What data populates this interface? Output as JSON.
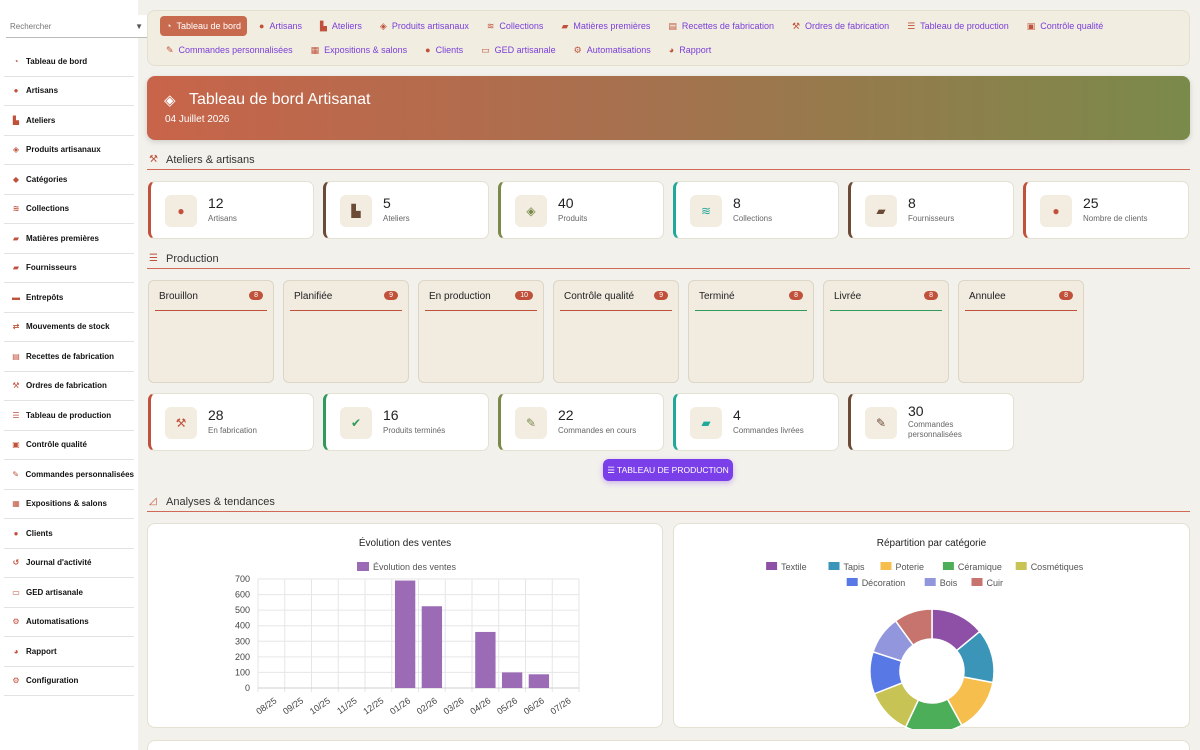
{
  "search": {
    "placeholder": "Rechercher"
  },
  "sidebar": {
    "items": [
      {
        "label": "Tableau de bord",
        "icon": "gauge-icon",
        "glyph": "◔"
      },
      {
        "label": "Artisans",
        "icon": "user-icon",
        "glyph": "●"
      },
      {
        "label": "Ateliers",
        "icon": "factory-icon",
        "glyph": "▙"
      },
      {
        "label": "Produits artisanaux",
        "icon": "gem-icon",
        "glyph": "◈"
      },
      {
        "label": "Catégories",
        "icon": "tags-icon",
        "glyph": "◆"
      },
      {
        "label": "Collections",
        "icon": "layers-icon",
        "glyph": "≋"
      },
      {
        "label": "Matières premières",
        "icon": "truck-icon",
        "glyph": "▰"
      },
      {
        "label": "Fournisseurs",
        "icon": "truck-icon",
        "glyph": "▰"
      },
      {
        "label": "Entrepôts",
        "icon": "warehouse-icon",
        "glyph": "▬"
      },
      {
        "label": "Mouvements de stock",
        "icon": "exchange-icon",
        "glyph": "⇄"
      },
      {
        "label": "Recettes de fabrication",
        "icon": "recipe-icon",
        "glyph": "▤"
      },
      {
        "label": "Ordres de fabrication",
        "icon": "hammer-icon",
        "glyph": "⚒"
      },
      {
        "label": "Tableau de production",
        "icon": "list-icon",
        "glyph": "☰"
      },
      {
        "label": "Contrôle qualité",
        "icon": "clipboard-check-icon",
        "glyph": "▣"
      },
      {
        "label": "Commandes personnalisées",
        "icon": "brush-icon",
        "glyph": "✎"
      },
      {
        "label": "Expositions & salons",
        "icon": "store-icon",
        "glyph": "▦"
      },
      {
        "label": "Clients",
        "icon": "users-icon",
        "glyph": "●"
      },
      {
        "label": "Journal d'activité",
        "icon": "history-icon",
        "glyph": "↺"
      },
      {
        "label": "GED artisanale",
        "icon": "folder-icon",
        "glyph": "▭"
      },
      {
        "label": "Automatisations",
        "icon": "robot-icon",
        "glyph": "⚙"
      },
      {
        "label": "Rapport",
        "icon": "pie-icon",
        "glyph": "◕"
      },
      {
        "label": "Configuration",
        "icon": "gear-icon",
        "glyph": "⚙"
      }
    ]
  },
  "topnav": {
    "row1": [
      {
        "label": "Tableau de bord",
        "icon": "gauge-icon",
        "glyph": "◔",
        "active": true
      },
      {
        "label": "Artisans",
        "icon": "user-icon",
        "glyph": "●"
      },
      {
        "label": "Ateliers",
        "icon": "factory-icon",
        "glyph": "▙"
      },
      {
        "label": "Produits artisanaux",
        "icon": "gem-icon",
        "glyph": "◈"
      },
      {
        "label": "Collections",
        "icon": "layers-icon",
        "glyph": "≋"
      },
      {
        "label": "Matières premières",
        "icon": "truck-icon",
        "glyph": "▰"
      },
      {
        "label": "Recettes de fabrication",
        "icon": "recipe-icon",
        "glyph": "▤"
      },
      {
        "label": "Ordres de fabrication",
        "icon": "hammer-icon",
        "glyph": "⚒"
      },
      {
        "label": "Tableau de production",
        "icon": "list-icon",
        "glyph": "☰"
      },
      {
        "label": "Contrôle qualité",
        "icon": "clipboard-check-icon",
        "glyph": "▣"
      }
    ],
    "row2": [
      {
        "label": "Commandes personnalisées",
        "icon": "brush-icon",
        "glyph": "✎"
      },
      {
        "label": "Expositions & salons",
        "icon": "store-icon",
        "glyph": "▦"
      },
      {
        "label": "Clients",
        "icon": "users-icon",
        "glyph": "●"
      },
      {
        "label": "GED artisanale",
        "icon": "folder-icon",
        "glyph": "▭"
      },
      {
        "label": "Automatisations",
        "icon": "robot-icon",
        "glyph": "⚙"
      },
      {
        "label": "Rapport",
        "icon": "pie-icon",
        "glyph": "◕"
      }
    ]
  },
  "header": {
    "title": "Tableau de bord Artisanat",
    "date": "04 Juillet 2026"
  },
  "sections": {
    "ateliers": "Ateliers & artisans",
    "production": "Production",
    "analyses": "Analyses & tendances"
  },
  "stats_top": [
    {
      "value": "12",
      "label": "Artisans",
      "icon": "user-icon",
      "glyph": "●",
      "color": "#c0523c"
    },
    {
      "value": "5",
      "label": "Ateliers",
      "icon": "factory-icon",
      "glyph": "▙",
      "color": "#6b4a36"
    },
    {
      "value": "40",
      "label": "Produits",
      "icon": "gem-icon",
      "glyph": "◈",
      "color": "#7a8a4a"
    },
    {
      "value": "8",
      "label": "Collections",
      "icon": "layers-icon",
      "glyph": "≋",
      "color": "#22a89a"
    },
    {
      "value": "8",
      "label": "Fournisseurs",
      "icon": "truck-icon",
      "glyph": "▰",
      "color": "#6b4a36"
    },
    {
      "value": "25",
      "label": "Nombre de clients",
      "icon": "users-icon",
      "glyph": "●",
      "color": "#c0523c"
    }
  ],
  "kanban": [
    {
      "label": "Brouillon",
      "count": "8",
      "color": "#c0523c"
    },
    {
      "label": "Planifiée",
      "count": "9",
      "color": "#c0523c"
    },
    {
      "label": "En production",
      "count": "10",
      "color": "#c0523c"
    },
    {
      "label": "Contrôle qualité",
      "count": "9",
      "color": "#c0523c"
    },
    {
      "label": "Terminé",
      "count": "8",
      "color": "#2f9a5a"
    },
    {
      "label": "Livrée",
      "count": "8",
      "color": "#2f9a5a"
    },
    {
      "label": "Annulee",
      "count": "8",
      "color": "#c0523c"
    }
  ],
  "stats_bottom": [
    {
      "value": "28",
      "label": "En fabrication",
      "icon": "hammer-icon",
      "glyph": "⚒",
      "color": "#c0523c"
    },
    {
      "value": "16",
      "label": "Produits terminés",
      "icon": "check-circle-icon",
      "glyph": "✔",
      "color": "#2f9a5a"
    },
    {
      "value": "22",
      "label": "Commandes en cours",
      "icon": "brush-icon",
      "glyph": "✎",
      "color": "#7a8a4a"
    },
    {
      "value": "4",
      "label": "Commandes livrées",
      "icon": "truck-icon",
      "glyph": "▰",
      "color": "#22a89a"
    },
    {
      "value": "30",
      "label": "Commandes personnalisées",
      "icon": "paintbrush-icon",
      "glyph": "✎",
      "color": "#6b4a36"
    }
  ],
  "production_button": "☰ TABLEAU DE PRODUCTION",
  "chart_data": [
    {
      "type": "bar",
      "title": "Évolution des ventes",
      "legend_position": "top",
      "categories": [
        "08/25",
        "09/25",
        "10/25",
        "11/25",
        "12/25",
        "01/26",
        "02/26",
        "03/26",
        "04/26",
        "05/26",
        "06/26",
        "07/26"
      ],
      "series": [
        {
          "name": "Évolution des ventes",
          "color": "#9b6bb5",
          "values": [
            0,
            0,
            0,
            0,
            0,
            690,
            525,
            0,
            360,
            100,
            88,
            0
          ]
        }
      ],
      "ylim": [
        0,
        700
      ],
      "yticks": [
        0,
        100,
        200,
        300,
        400,
        500,
        600,
        700
      ],
      "grid": true
    },
    {
      "type": "pie",
      "title": "Répartition par catégorie",
      "legend_position": "top",
      "slices": [
        {
          "label": "Textile",
          "value": 14,
          "color": "#8e4fa6"
        },
        {
          "label": "Tapis",
          "value": 14,
          "color": "#3a95b8"
        },
        {
          "label": "Poterie",
          "value": 14,
          "color": "#f6bf4d"
        },
        {
          "label": "Céramique",
          "value": 15,
          "color": "#4cae58"
        },
        {
          "label": "Cosmétiques",
          "value": 12,
          "color": "#c7c455"
        },
        {
          "label": "Décoration",
          "value": 11,
          "color": "#5878e6"
        },
        {
          "label": "Bois",
          "value": 10,
          "color": "#9296dc"
        },
        {
          "label": "Cuir",
          "value": 10,
          "color": "#c7736e"
        }
      ]
    }
  ]
}
